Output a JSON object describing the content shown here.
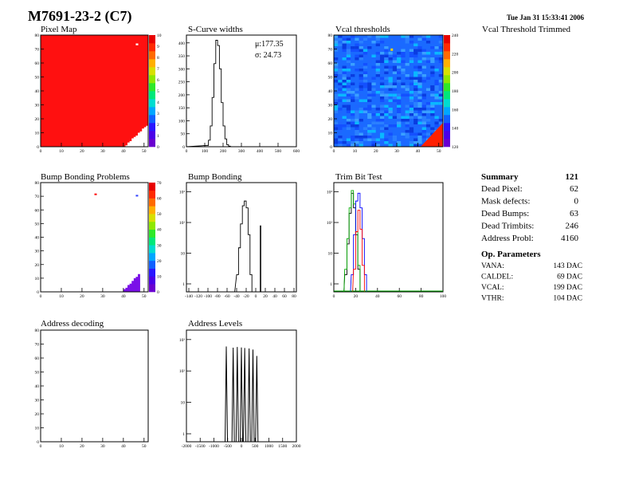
{
  "header": {
    "title": "M7691-23-2 (C7)",
    "date": "Tue Jan 31 15:33:41 2006"
  },
  "panels": [
    {
      "id": "pixel-map",
      "title": "Pixel Map",
      "xticks": [
        "0",
        "10",
        "20",
        "30",
        "40",
        "50"
      ],
      "yticks": [
        "0",
        "10",
        "20",
        "30",
        "40",
        "50",
        "60",
        "70",
        "80"
      ],
      "zticks": [
        "0",
        "1",
        "2",
        "3",
        "4",
        "5",
        "6",
        "7",
        "8",
        "9",
        "10"
      ]
    },
    {
      "id": "scurve-widths",
      "title": "S-Curve widths",
      "xticks": [
        "0",
        "100",
        "200",
        "300",
        "400",
        "500",
        "600"
      ],
      "yticks": [
        "0",
        "50",
        "100",
        "150",
        "200",
        "250",
        "300",
        "350",
        "400"
      ],
      "stats": {
        "mu": "μ:177.35",
        "sigma": "σ: 24.73"
      }
    },
    {
      "id": "vcal-thresholds",
      "title": "Vcal thresholds",
      "xticks": [
        "0",
        "10",
        "20",
        "30",
        "40",
        "50"
      ],
      "yticks": [
        "0",
        "10",
        "20",
        "30",
        "40",
        "50",
        "60",
        "70",
        "80"
      ],
      "zticks": [
        "120",
        "140",
        "160",
        "180",
        "200",
        "220",
        "240"
      ]
    },
    {
      "id": "vcal-threshold-trimmed",
      "title": "Vcal Threshold Trimmed"
    },
    {
      "id": "bump-bonding-problems",
      "title": "Bump Bonding Problems",
      "xticks": [
        "0",
        "10",
        "20",
        "30",
        "40",
        "50"
      ],
      "yticks": [
        "0",
        "10",
        "20",
        "30",
        "40",
        "50",
        "60",
        "70",
        "80"
      ],
      "zticks": [
        "0",
        "10",
        "20",
        "30",
        "40",
        "50",
        "60",
        "70"
      ]
    },
    {
      "id": "bump-bonding",
      "title": "Bump Bonding",
      "xticks": [
        "-140",
        "-120",
        "-100",
        "-80",
        "-60",
        "-40",
        "-20",
        "0",
        "20",
        "40",
        "60",
        "80"
      ],
      "yticks": [
        "1",
        "10",
        "10²",
        "10³"
      ]
    },
    {
      "id": "trim-bit-test",
      "title": "Trim Bit Test",
      "xticks": [
        "0",
        "20",
        "40",
        "60",
        "80",
        "100"
      ],
      "yticks": [
        "1",
        "10",
        "10²",
        "10³"
      ]
    },
    {
      "id": "address-decoding",
      "title": "Address decoding",
      "xticks": [
        "0",
        "10",
        "20",
        "30",
        "40",
        "50"
      ],
      "yticks": [
        "0",
        "10",
        "20",
        "30",
        "40",
        "50",
        "60",
        "70",
        "80"
      ]
    },
    {
      "id": "address-levels",
      "title": "Address Levels",
      "xticks": [
        "-2000",
        "-1500",
        "-1000",
        "-500",
        "0",
        "500",
        "1000",
        "1500",
        "2000"
      ],
      "yticks": [
        "1",
        "10",
        "10²",
        "10³"
      ]
    }
  ],
  "summary": {
    "heading": "Summary",
    "total": "121",
    "rows": [
      {
        "label": "Dead Pixel:",
        "value": "62"
      },
      {
        "label": "Mask defects:",
        "value": "0"
      },
      {
        "label": "Dead Bumps:",
        "value": "63"
      },
      {
        "label": "Dead Trimbits:",
        "value": "246"
      },
      {
        "label": "Address Probl:",
        "value": "4160"
      }
    ]
  },
  "op_parameters": {
    "heading": "Op. Parameters",
    "rows": [
      {
        "label": "VANA:",
        "value": "143 DAC"
      },
      {
        "label": "CALDEL:",
        "value": "69 DAC"
      },
      {
        "label": "VCAL:",
        "value": "199 DAC"
      },
      {
        "label": "VTHR:",
        "value": "104 DAC"
      }
    ]
  },
  "chart_data": [
    {
      "type": "heatmap",
      "name": "Pixel Map",
      "x_range": [
        0,
        52
      ],
      "y_range": [
        0,
        80
      ],
      "z_range": [
        0,
        10
      ],
      "description": "nearly all pixels at 10 (red); dead corner region at bottom-right (x>40,y<16) plus one dead pixel near (46,74)"
    },
    {
      "type": "line",
      "name": "S-Curve widths",
      "xlim": [
        0,
        600
      ],
      "ylim": [
        0,
        430
      ],
      "x": [
        110,
        120,
        130,
        140,
        150,
        160,
        170,
        180,
        190,
        200,
        210,
        220,
        230
      ],
      "values": [
        5,
        25,
        80,
        190,
        320,
        410,
        390,
        300,
        170,
        80,
        30,
        8,
        2
      ],
      "mu": 177.35,
      "sigma": 24.73
    },
    {
      "type": "heatmap",
      "name": "Vcal thresholds",
      "x_range": [
        0,
        52
      ],
      "y_range": [
        0,
        80
      ],
      "z_range": [
        110,
        250
      ],
      "description": "mostly blue ~150-160 with a few hot pixels; red region bottom-right corner"
    },
    {
      "type": "heatmap",
      "name": "Bump Bonding Problems",
      "x_range": [
        0,
        52
      ],
      "y_range": [
        0,
        80
      ],
      "z_range": [
        0,
        75
      ],
      "description": "failing pixels in bottom-right corner (purple) plus two isolated pixels near y=71"
    },
    {
      "type": "line",
      "name": "Bump Bonding",
      "log_y": true,
      "xlim": [
        -145,
        85
      ],
      "x": [
        -40,
        -36,
        -32,
        -28,
        -24,
        -20,
        -16,
        -12
      ],
      "values": [
        2,
        15,
        90,
        350,
        500,
        300,
        40,
        2
      ],
      "spike": {
        "x": 10,
        "value": 80
      }
    },
    {
      "type": "line",
      "name": "Trim Bit Test",
      "log_y": true,
      "xlim": [
        0,
        100
      ],
      "series": [
        {
          "color": "#000000",
          "x": [
            10,
            12,
            14,
            16,
            18,
            20,
            22
          ],
          "values": [
            2,
            20,
            200,
            900,
            300,
            40,
            3
          ]
        },
        {
          "color": "#00aa00",
          "x": [
            10,
            12,
            14,
            16,
            18,
            20,
            22
          ],
          "values": [
            3,
            30,
            300,
            1100,
            400,
            50,
            4
          ]
        },
        {
          "color": "#0000ff",
          "x": [
            16,
            18,
            20,
            22,
            24,
            26,
            28
          ],
          "values": [
            2,
            40,
            500,
            900,
            300,
            30,
            2
          ]
        },
        {
          "color": "#ff0000",
          "x": [
            18,
            20,
            22,
            24,
            26
          ],
          "values": [
            3,
            50,
            250,
            60,
            4
          ]
        }
      ]
    },
    {
      "type": "heatmap",
      "name": "Address decoding",
      "x_range": [
        0,
        52
      ],
      "y_range": [
        0,
        80
      ],
      "description": "empty"
    },
    {
      "type": "line",
      "name": "Address Levels",
      "log_y": true,
      "xlim": [
        -2000,
        2000
      ],
      "peaks_x": [
        -550,
        -300,
        -150,
        0,
        120,
        280,
        420,
        560
      ],
      "peaks_values": [
        600,
        550,
        580,
        560,
        540,
        520,
        480,
        300
      ]
    }
  ]
}
